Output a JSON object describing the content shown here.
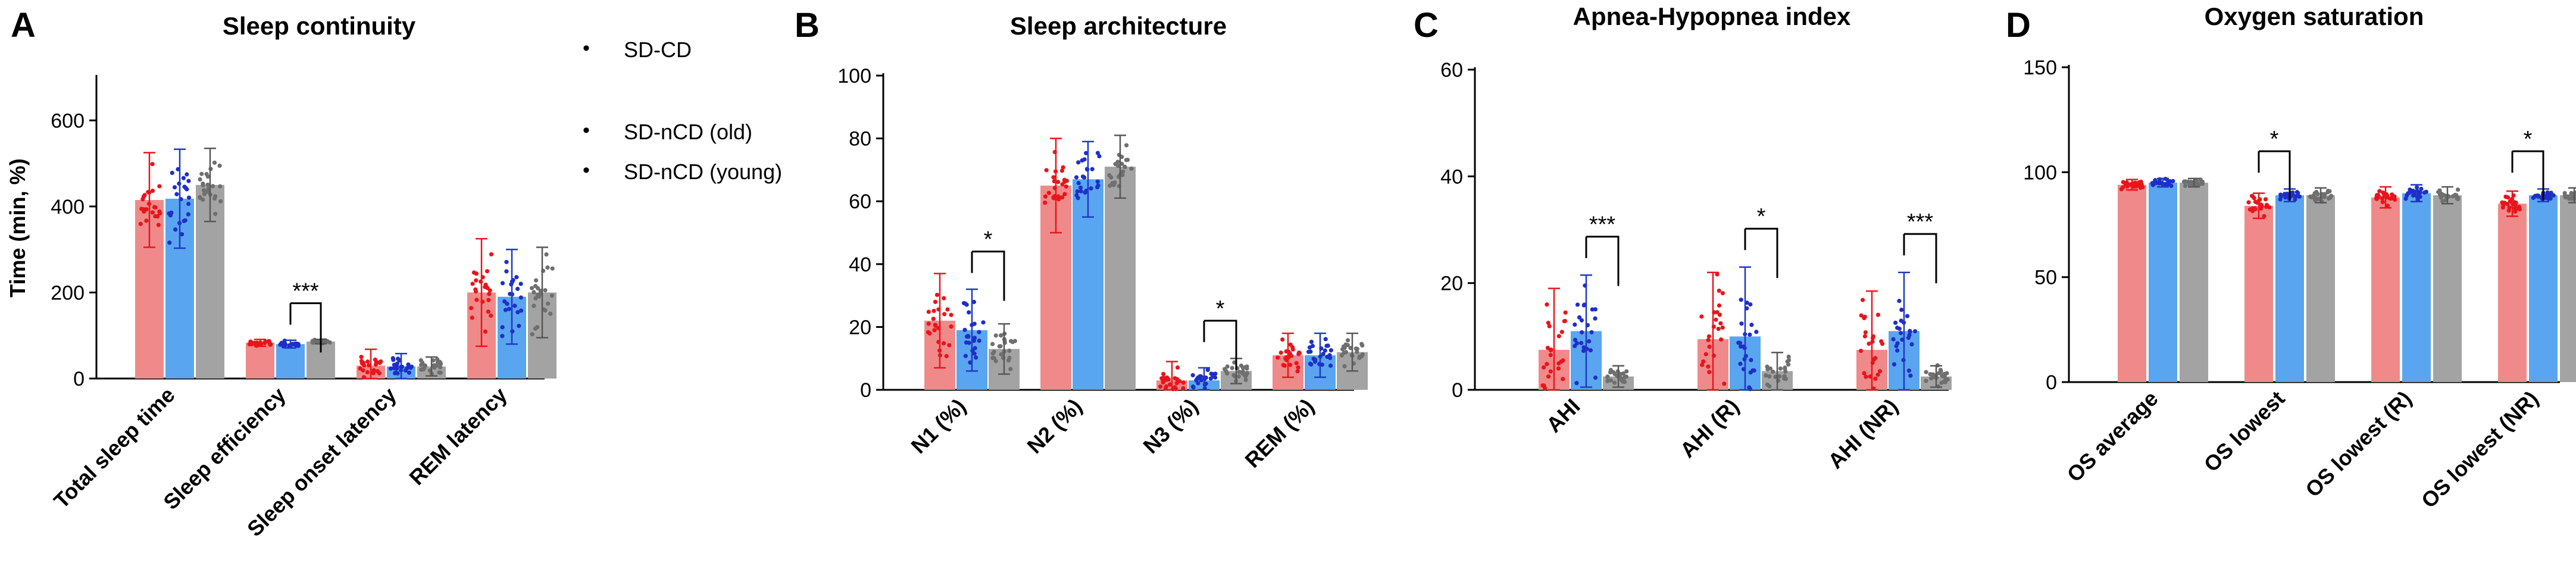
{
  "colors": {
    "sd_cd": "#f08a8a",
    "sd_ncd_old": "#5aa5ef",
    "sd_ncd_young": "#a3a3a3",
    "dot_cd": "#e8151b",
    "dot_old": "#1e2fc8",
    "dot_young": "#6f6f6f",
    "err_cd": "#e8151b",
    "err_old": "#1f39c4",
    "err_young": "#585858"
  },
  "legend": {
    "entries": [
      "SD-CD",
      "SD-nCD (old)",
      "SD-nCD (young)"
    ],
    "marker": "•"
  },
  "chart_data": [
    {
      "panel_letter": "A",
      "type": "bar",
      "title": "Sleep continuity",
      "ylabel": "Time (min, %)",
      "xlabel": "",
      "ylim": [
        0,
        700
      ],
      "yticks": [
        0,
        200,
        400,
        600
      ],
      "categories": [
        "Total sleep time",
        "Sleep efficiency",
        "Sleep onset latency",
        "REM latency"
      ],
      "series": [
        {
          "name": "SD-CD",
          "values": [
            415,
            83,
            30,
            200
          ],
          "error": [
            110,
            8,
            38,
            125
          ]
        },
        {
          "name": "SD-nCD (old)",
          "values": [
            418,
            80,
            28,
            190
          ],
          "error": [
            115,
            9,
            30,
            110
          ]
        },
        {
          "name": "SD-nCD (young)",
          "values": [
            450,
            86,
            28,
            200
          ],
          "error": [
            85,
            5,
            22,
            105
          ]
        }
      ],
      "significance": [
        {
          "category": "Sleep efficiency",
          "pair": [
            1,
            2
          ],
          "label": "***"
        }
      ]
    },
    {
      "panel_letter": "B",
      "type": "bar",
      "title": "Sleep architecture",
      "ylabel": "",
      "xlabel": "",
      "ylim": [
        0,
        100
      ],
      "yticks": [
        0,
        20,
        40,
        60,
        80,
        100
      ],
      "categories": [
        "N1 (%)",
        "N2 (%)",
        "N3 (%)",
        "REM (%)"
      ],
      "series": [
        {
          "name": "SD-CD",
          "values": [
            22,
            65,
            3,
            11
          ],
          "error": [
            15,
            15,
            6,
            7
          ]
        },
        {
          "name": "SD-nCD (old)",
          "values": [
            19,
            67,
            3,
            11
          ],
          "error": [
            13,
            12,
            4,
            7
          ]
        },
        {
          "name": "SD-nCD (young)",
          "values": [
            13,
            71,
            6,
            12
          ],
          "error": [
            8,
            10,
            4,
            6
          ]
        }
      ],
      "significance": [
        {
          "category": "N1 (%)",
          "pair": [
            1,
            2
          ],
          "label": "*"
        },
        {
          "category": "N3 (%)",
          "pair": [
            1,
            2
          ],
          "label": "*"
        }
      ]
    },
    {
      "panel_letter": "C",
      "type": "bar",
      "title": "Apnea-Hypopnea index",
      "ylabel": "",
      "xlabel": "",
      "ylim": [
        0,
        60
      ],
      "yticks": [
        0,
        20,
        40,
        60
      ],
      "categories": [
        "AHI",
        "AHI (R)",
        "AHI (NR)"
      ],
      "series": [
        {
          "name": "SD-CD",
          "values": [
            7.5,
            9.5,
            7.5
          ],
          "error": [
            11.5,
            12.5,
            11
          ]
        },
        {
          "name": "SD-nCD (old)",
          "values": [
            11,
            10,
            11
          ],
          "error": [
            10.5,
            13,
            11
          ]
        },
        {
          "name": "SD-nCD (young)",
          "values": [
            2.5,
            3.5,
            2.5
          ],
          "error": [
            2,
            3.5,
            2
          ]
        }
      ],
      "significance": [
        {
          "category": "AHI",
          "pair": [
            1,
            2
          ],
          "label": "***"
        },
        {
          "category": "AHI (R)",
          "pair": [
            1,
            2
          ],
          "label": "*"
        },
        {
          "category": "AHI (NR)",
          "pair": [
            1,
            2
          ],
          "label": "***"
        }
      ]
    },
    {
      "panel_letter": "D",
      "type": "bar",
      "title": "Oxygen saturation",
      "ylabel": "",
      "xlabel": "",
      "ylim": [
        0,
        150
      ],
      "yticks": [
        0,
        50,
        100,
        150
      ],
      "categories": [
        "OS average",
        "OS lowest",
        "OS lowest (R)",
        "OS lowest (NR)"
      ],
      "series": [
        {
          "name": "SD-CD",
          "values": [
            94,
            84,
            88,
            85
          ],
          "error": [
            2.5,
            6,
            5,
            6
          ]
        },
        {
          "name": "SD-nCD (old)",
          "values": [
            95,
            89,
            90,
            89
          ],
          "error": [
            2,
            3,
            4,
            3
          ]
        },
        {
          "name": "SD-nCD (young)",
          "values": [
            95,
            89,
            89,
            89
          ],
          "error": [
            2,
            3.5,
            4,
            3.5
          ]
        }
      ],
      "significance": [
        {
          "category": "OS lowest",
          "pair": [
            0,
            1
          ],
          "label": "*"
        },
        {
          "category": "OS lowest (NR)",
          "pair": [
            0,
            1
          ],
          "label": "*"
        }
      ]
    }
  ]
}
